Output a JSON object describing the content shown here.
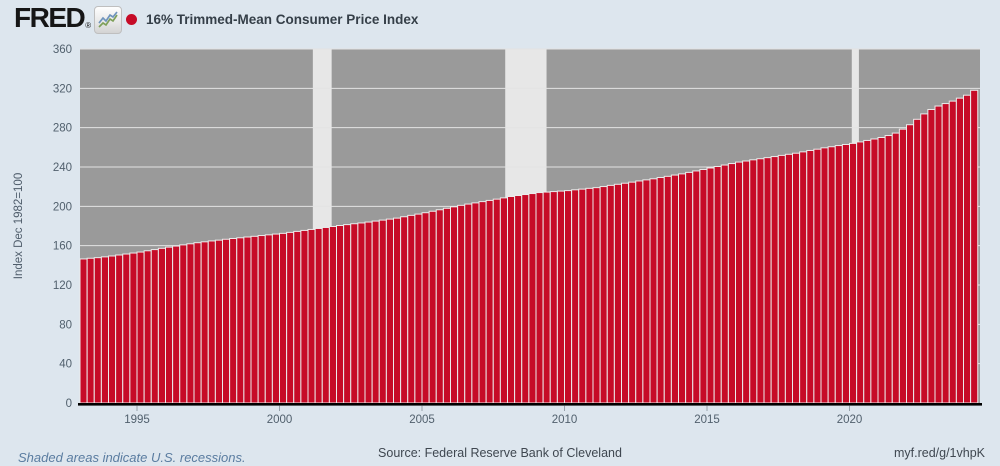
{
  "header": {
    "logo_text": "FRED",
    "registered_mark": "®",
    "series_marker_color": "#c60b27",
    "series_title": "16% Trimmed-Mean Consumer Price Index"
  },
  "footer": {
    "note": "Shaded areas indicate U.S. recessions.",
    "source": "Source: Federal Reserve Bank of Cleveland",
    "link": "myf.red/g/1vhpK"
  },
  "chart_data": {
    "type": "bar",
    "title": "16% Trimmed-Mean Consumer Price Index",
    "ylabel": "Index Dec 1982=100",
    "xlabel": "",
    "ylim": [
      0,
      360
    ],
    "y_ticks": [
      0,
      40,
      80,
      120,
      160,
      200,
      240,
      280,
      320,
      360
    ],
    "x_ticks": [
      1995,
      2000,
      2005,
      2010,
      2015,
      2020
    ],
    "frequency": "quarterly",
    "start": "1993-Q1",
    "end": "2024-Q2",
    "x_range": [
      1993.0,
      2024.6
    ],
    "grid": true,
    "legend_position": "top-left",
    "recessions": [
      [
        2001.17,
        2001.83
      ],
      [
        2007.92,
        2009.37
      ],
      [
        2020.08,
        2020.33
      ]
    ],
    "values": [
      146.5,
      147.2,
      147.8,
      148.6,
      149.5,
      150.5,
      151.5,
      152.5,
      153.5,
      154.8,
      156.0,
      157.3,
      158.5,
      159.6,
      160.8,
      161.9,
      163.0,
      163.9,
      164.8,
      165.6,
      166.5,
      167.3,
      168.0,
      168.8,
      169.5,
      170.3,
      171.0,
      171.8,
      172.5,
      173.5,
      174.5,
      175.5,
      176.5,
      177.5,
      178.5,
      179.5,
      180.5,
      181.4,
      182.3,
      183.1,
      184.0,
      185.0,
      186.0,
      187.0,
      188.0,
      189.4,
      190.8,
      192.1,
      193.5,
      195.0,
      196.5,
      198.0,
      199.5,
      201.0,
      202.3,
      203.5,
      204.8,
      206.0,
      207.3,
      208.6,
      210.0,
      211.0,
      212.0,
      213.0,
      214.0,
      214.5,
      215.0,
      215.5,
      216.0,
      216.8,
      217.5,
      218.3,
      219.0,
      220.1,
      221.3,
      222.4,
      223.5,
      224.6,
      225.8,
      226.9,
      228.0,
      229.3,
      230.5,
      231.8,
      233.0,
      234.5,
      236.0,
      237.5,
      239.0,
      240.5,
      242.0,
      243.5,
      245.0,
      246.1,
      247.3,
      248.4,
      249.5,
      250.6,
      251.8,
      252.9,
      254.0,
      255.4,
      256.8,
      258.1,
      259.5,
      260.6,
      261.8,
      262.9,
      264.0,
      265.5,
      267.0,
      268.5,
      270.0,
      272.0,
      274.5,
      278.5,
      283.0,
      288.5,
      294.0,
      298.5,
      302.0,
      304.5,
      307.0,
      310.0,
      313.0,
      318.0
    ],
    "colors": {
      "bar": "#c60b27",
      "bar_border": "#ececec",
      "plot_bg": "#9a9a9a",
      "recession_band": "#e7e7e7",
      "gridline": "#e3e3e3",
      "page_bg": "#dde6ee",
      "axis_line": "#000000",
      "tick_label": "#51606d"
    }
  }
}
